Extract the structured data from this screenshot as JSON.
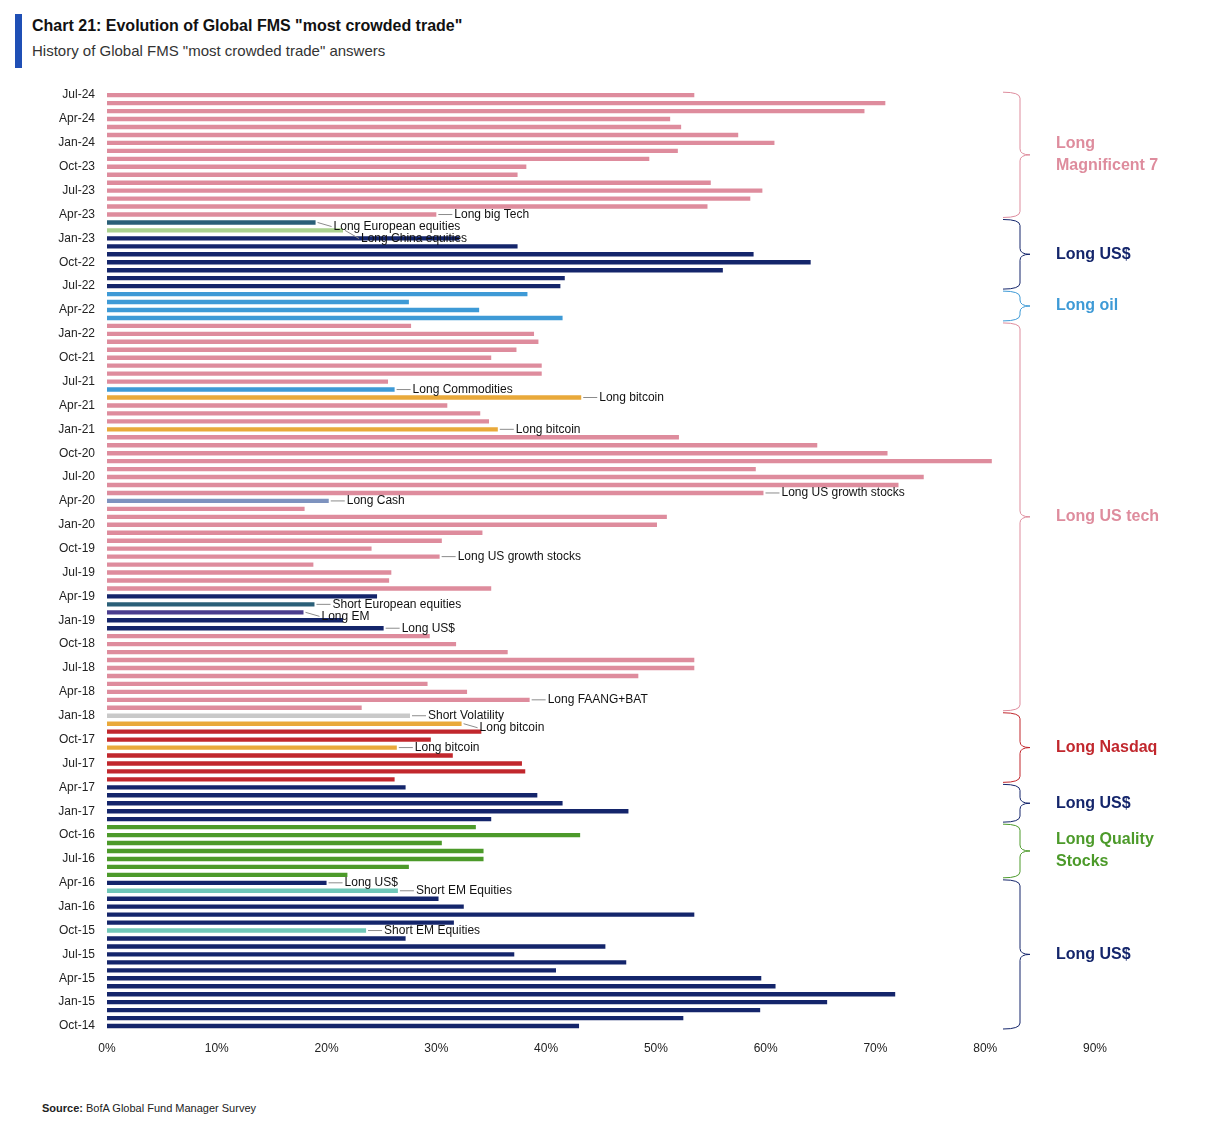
{
  "chart_data": {
    "type": "bar",
    "orientation": "horizontal",
    "title": "Chart 21: Evolution of Global FMS \"most crowded trade\"",
    "subtitle": "History of Global FMS \"most crowded trade\" answers",
    "source": "Source: BofA Global Fund Manager Survey",
    "grid": false,
    "categories": [
      "Jul-24",
      null,
      null,
      "Apr-24",
      null,
      null,
      "Jan-24",
      null,
      null,
      "Oct-23",
      null,
      null,
      "Jul-23",
      null,
      null,
      "Apr-23",
      null,
      null,
      "Jan-23",
      null,
      null,
      "Oct-22",
      null,
      null,
      "Jul-22",
      null,
      null,
      "Apr-22",
      null,
      null,
      "Jan-22",
      null,
      null,
      "Oct-21",
      null,
      null,
      "Jul-21",
      null,
      null,
      "Apr-21",
      null,
      null,
      "Jan-21",
      null,
      null,
      "Oct-20",
      null,
      null,
      "Jul-20",
      null,
      null,
      "Apr-20",
      null,
      null,
      "Jan-20",
      null,
      null,
      "Oct-19",
      null,
      null,
      "Jul-19",
      null,
      null,
      "Apr-19",
      null,
      null,
      "Jan-19",
      null,
      null,
      "Oct-18",
      null,
      null,
      "Jul-18",
      null,
      null,
      "Apr-18",
      null,
      null,
      "Jan-18",
      null,
      null,
      "Oct-17",
      null,
      null,
      "Jul-17",
      null,
      null,
      "Apr-17",
      null,
      null,
      "Jan-17",
      null,
      null,
      "Oct-16",
      null,
      null,
      "Jul-16",
      null,
      null,
      "Apr-16",
      null,
      null,
      "Jan-16",
      null,
      null,
      "Oct-15",
      null,
      null,
      "Jul-15",
      null,
      null,
      "Apr-15",
      null,
      null,
      "Jan-15",
      null,
      null,
      "Oct-14"
    ],
    "values": [
      53.5,
      70.9,
      69.0,
      51.3,
      52.3,
      57.5,
      60.8,
      52.0,
      49.4,
      38.2,
      37.4,
      55.0,
      59.7,
      58.6,
      54.7,
      30.0,
      19.0,
      21.5,
      32.1,
      37.4,
      58.9,
      64.1,
      56.1,
      41.7,
      41.3,
      38.3,
      27.5,
      33.9,
      41.5,
      27.7,
      38.9,
      39.3,
      37.3,
      35.0,
      39.6,
      39.6,
      25.6,
      26.2,
      43.2,
      31.0,
      34.0,
      34.8,
      35.6,
      52.1,
      64.7,
      71.1,
      80.6,
      59.1,
      74.4,
      72.1,
      59.8,
      20.2,
      18.0,
      51.0,
      50.1,
      34.2,
      30.5,
      24.1,
      30.3,
      18.8,
      25.9,
      25.7,
      35.0,
      24.6,
      18.9,
      17.9,
      21.5,
      25.2,
      29.4,
      31.8,
      36.5,
      53.5,
      53.5,
      48.4,
      29.2,
      32.8,
      38.5,
      23.2,
      27.6,
      32.3,
      34.1,
      29.5,
      26.4,
      31.5,
      37.8,
      38.1,
      26.2,
      27.2,
      39.2,
      41.5,
      47.5,
      35.0,
      33.6,
      43.1,
      30.5,
      34.3,
      34.3,
      27.5,
      21.9,
      20.0,
      26.5,
      30.2,
      32.5,
      53.5,
      31.6,
      23.6,
      27.2,
      45.4,
      37.1,
      47.3,
      40.9,
      59.6,
      60.9,
      71.8,
      65.6,
      59.5,
      52.5,
      43.0
    ],
    "colors": [
      "#de8c9d",
      "#de8c9d",
      "#de8c9d",
      "#de8c9d",
      "#de8c9d",
      "#de8c9d",
      "#de8c9d",
      "#de8c9d",
      "#de8c9d",
      "#de8c9d",
      "#de8c9d",
      "#de8c9d",
      "#de8c9d",
      "#de8c9d",
      "#de8c9d",
      "#de8c9d",
      "#2a5f78",
      "#a9d18e",
      "#14256b",
      "#14256b",
      "#14256b",
      "#14256b",
      "#14256b",
      "#14256b",
      "#14256b",
      "#3e9ad6",
      "#3e9ad6",
      "#3e9ad6",
      "#3e9ad6",
      "#de8c9d",
      "#de8c9d",
      "#de8c9d",
      "#de8c9d",
      "#de8c9d",
      "#de8c9d",
      "#de8c9d",
      "#de8c9d",
      "#3e9ad6",
      "#e9a93a",
      "#de8c9d",
      "#de8c9d",
      "#de8c9d",
      "#e9a93a",
      "#de8c9d",
      "#de8c9d",
      "#de8c9d",
      "#de8c9d",
      "#de8c9d",
      "#de8c9d",
      "#de8c9d",
      "#de8c9d",
      "#7e93bf",
      "#de8c9d",
      "#de8c9d",
      "#de8c9d",
      "#de8c9d",
      "#de8c9d",
      "#de8c9d",
      "#de8c9d",
      "#de8c9d",
      "#de8c9d",
      "#de8c9d",
      "#de8c9d",
      "#14256b",
      "#2a5f78",
      "#4a3d8f",
      "#14256b",
      "#14256b",
      "#de8c9d",
      "#de8c9d",
      "#de8c9d",
      "#de8c9d",
      "#de8c9d",
      "#de8c9d",
      "#de8c9d",
      "#de8c9d",
      "#de8c9d",
      "#de8c9d",
      "#c9c9c9",
      "#e9a93a",
      "#c1272d",
      "#c1272d",
      "#e9a93a",
      "#c1272d",
      "#c1272d",
      "#c1272d",
      "#c1272d",
      "#14256b",
      "#14256b",
      "#14256b",
      "#14256b",
      "#14256b",
      "#4c9a2a",
      "#4c9a2a",
      "#4c9a2a",
      "#4c9a2a",
      "#4c9a2a",
      "#4c9a2a",
      "#4c9a2a",
      "#14256b",
      "#6fc7b8",
      "#14256b",
      "#14256b",
      "#14256b",
      "#14256b",
      "#6fc7b8",
      "#14256b",
      "#14256b",
      "#14256b",
      "#14256b",
      "#14256b",
      "#14256b",
      "#14256b",
      "#14256b",
      "#14256b",
      "#14256b",
      "#14256b",
      "#14256b"
    ],
    "notes": [
      {
        "position": 15,
        "text": "Long big Tech"
      },
      {
        "position": 16,
        "text": "Long European equities"
      },
      {
        "position": 17,
        "text": "Long China equities"
      },
      {
        "position": 37,
        "text": "Long Commodities"
      },
      {
        "position": 38,
        "text": "Long bitcoin"
      },
      {
        "position": 42,
        "text": "Long bitcoin"
      },
      {
        "position": 50,
        "text": "Long US growth stocks"
      },
      {
        "position": 51,
        "text": "Long Cash"
      },
      {
        "position": 58,
        "text": "Long US growth stocks"
      },
      {
        "position": 64,
        "text": "Short European equities"
      },
      {
        "position": 65,
        "text": "Long EM"
      },
      {
        "position": 67,
        "text": "Long US$"
      },
      {
        "position": 76,
        "text": "Long FAANG+BAT"
      },
      {
        "position": 78,
        "text": "Short Volatility"
      },
      {
        "position": 79,
        "text": "Long bitcoin"
      },
      {
        "position": 82,
        "text": "Long bitcoin"
      },
      {
        "position": 99,
        "text": "Long US$"
      },
      {
        "position": 100,
        "text": "Short EM Equities"
      },
      {
        "position": 105,
        "text": "Short EM Equities"
      }
    ],
    "groups": [
      {
        "label": [
          "Long",
          "Magnificent 7"
        ],
        "color": "#de8c9d",
        "first": 0,
        "last": 15
      },
      {
        "label": [
          "Long US$"
        ],
        "color": "#14256b",
        "first": 16,
        "last": 24
      },
      {
        "label": [
          "Long oil"
        ],
        "color": "#3e9ad6",
        "first": 25,
        "last": 28
      },
      {
        "label": [
          "Long US tech"
        ],
        "color": "#de8c9d",
        "first": 29,
        "last": 77
      },
      {
        "label": [
          "Long Nasdaq"
        ],
        "color": "#c1272d",
        "first": 78,
        "last": 86
      },
      {
        "label": [
          "Long US$"
        ],
        "color": "#14256b",
        "first": 87,
        "last": 91
      },
      {
        "label": [
          "Long Quality",
          "Stocks"
        ],
        "color": "#4c9a2a",
        "first": 92,
        "last": 98
      },
      {
        "label": [
          "Long US$"
        ],
        "color": "#14256b",
        "first": 99,
        "last": 117
      }
    ],
    "xlim": [
      0,
      90
    ],
    "xticks": [
      {
        "value": 0,
        "label": "0%"
      },
      {
        "value": 10,
        "label": "10%"
      },
      {
        "value": 20,
        "label": "20%"
      },
      {
        "value": 30,
        "label": "30%"
      },
      {
        "value": 40,
        "label": "40%"
      },
      {
        "value": 50,
        "label": "50%"
      },
      {
        "value": 60,
        "label": "60%"
      },
      {
        "value": 70,
        "label": "70%"
      },
      {
        "value": 80,
        "label": "80%"
      },
      {
        "value": 90,
        "label": "90%"
      }
    ]
  }
}
